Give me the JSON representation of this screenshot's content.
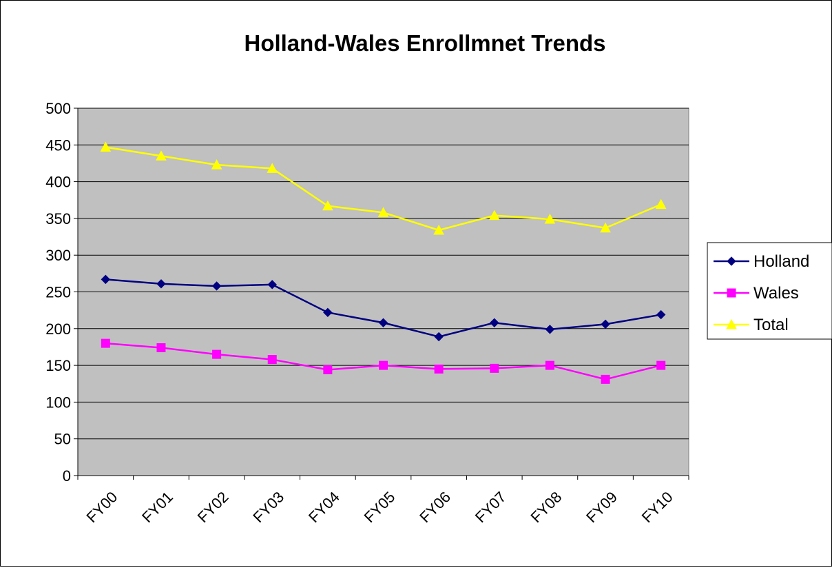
{
  "chart_data": {
    "type": "line",
    "title": "Holland-Wales Enrollmnet Trends",
    "xlabel": "",
    "ylabel": "",
    "categories": [
      "FY00",
      "FY01",
      "FY02",
      "FY03",
      "FY04",
      "FY05",
      "FY06",
      "FY07",
      "FY08",
      "FY09",
      "FY10"
    ],
    "ylim": [
      0,
      500
    ],
    "yticks": [
      0,
      50,
      100,
      150,
      200,
      250,
      300,
      350,
      400,
      450,
      500
    ],
    "grid": true,
    "legend": "right",
    "plot_background": "#c0c0c0",
    "series": [
      {
        "name": "Holland",
        "color": "#000080",
        "marker": "diamond",
        "values": [
          267,
          261,
          258,
          260,
          222,
          208,
          189,
          208,
          199,
          206,
          219
        ]
      },
      {
        "name": "Wales",
        "color": "#ff00ff",
        "marker": "square",
        "values": [
          180,
          174,
          165,
          158,
          144,
          150,
          145,
          146,
          150,
          131,
          150
        ]
      },
      {
        "name": "Total",
        "color": "#ffff00",
        "marker": "triangle",
        "values": [
          447,
          435,
          423,
          418,
          367,
          358,
          334,
          354,
          349,
          337,
          369
        ]
      }
    ]
  }
}
